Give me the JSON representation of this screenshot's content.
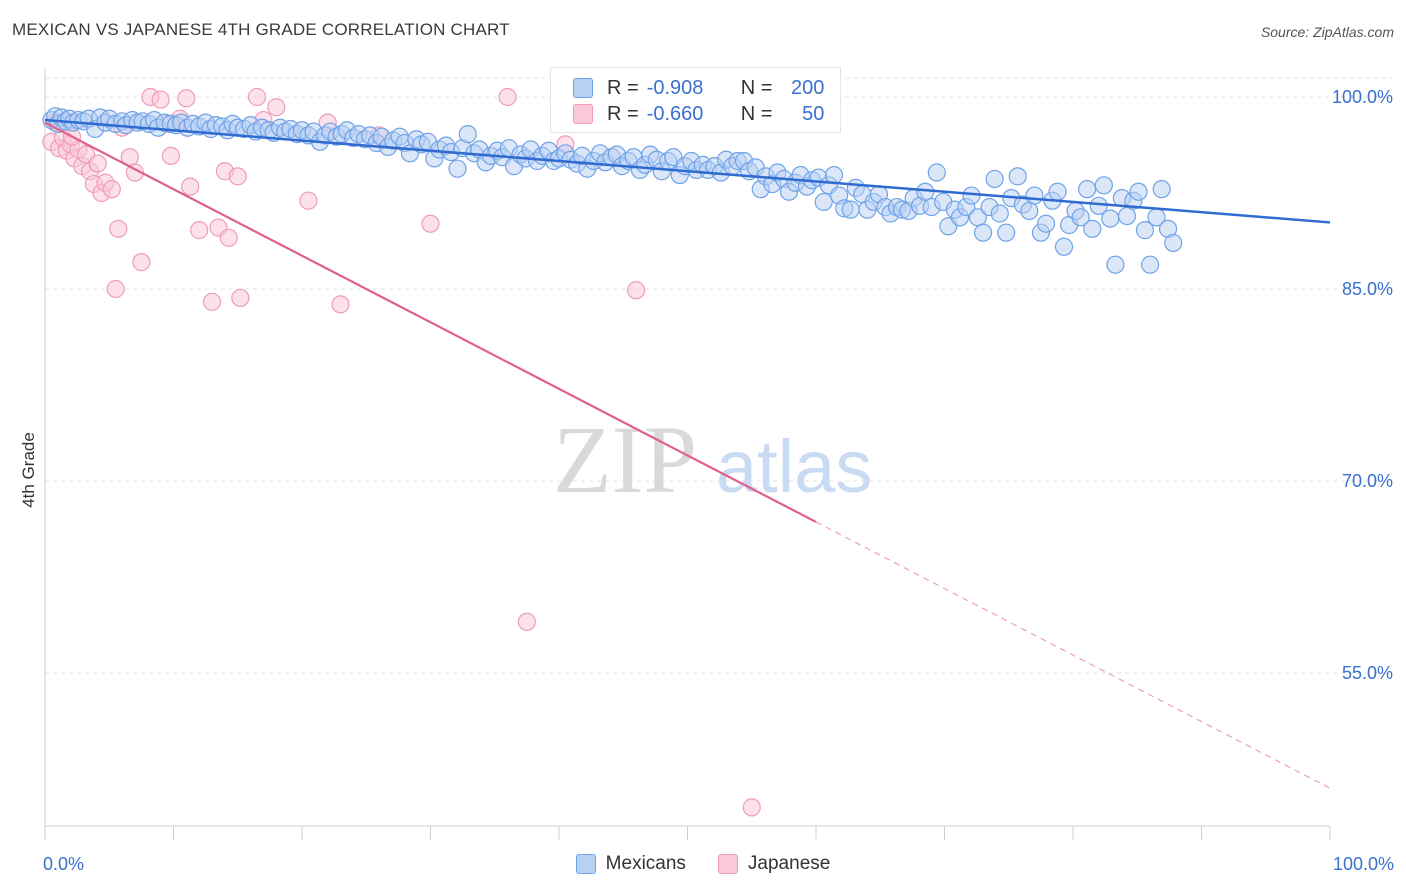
{
  "title": "MEXICAN VS JAPANESE 4TH GRADE CORRELATION CHART",
  "source": "Source: ZipAtlas.com",
  "watermark": {
    "zip": "ZIP",
    "atlas": "atlas"
  },
  "legend": {
    "items": [
      {
        "name": "Mexicans",
        "r_label": "R =",
        "r_value": "-0.908",
        "n_label": "N =",
        "n_value": "200",
        "color": "#6fa3e8",
        "fill": "#b7d0f3"
      },
      {
        "name": "Japanese",
        "r_label": "R =",
        "r_value": "-0.660",
        "n_label": "N =",
        "n_value": "50",
        "color": "#f09bb8",
        "fill": "#f9c9d8"
      }
    ]
  },
  "chart_data": {
    "type": "scatter",
    "title": "MEXICAN VS JAPANESE 4TH GRADE CORRELATION CHART",
    "xlabel": "",
    "ylabel": "4th Grade",
    "xlim": [
      0,
      100
    ],
    "ylim": [
      40,
      101
    ],
    "x_tick_labels": [
      "0.0%",
      "100.0%"
    ],
    "y_ticks": [
      55,
      70,
      85,
      100
    ],
    "y_tick_labels": [
      "55.0%",
      "70.0%",
      "85.0%",
      "100.0%"
    ],
    "grid": true,
    "legend_position": "top-center",
    "series": [
      {
        "name": "Mexicans",
        "color": "#3a70d0",
        "trend": {
          "x0": 0,
          "y0": 98.2,
          "x1": 100,
          "y1": 90.2
        },
        "points": [
          [
            0.5,
            98.2
          ],
          [
            0.8,
            98.5
          ],
          [
            1.0,
            97.9
          ],
          [
            1.3,
            98.4
          ],
          [
            1.6,
            98.1
          ],
          [
            1.9,
            98.3
          ],
          [
            2.2,
            98.0
          ],
          [
            2.6,
            98.2
          ],
          [
            3.0,
            98.1
          ],
          [
            3.4,
            98.3
          ],
          [
            3.9,
            97.5
          ],
          [
            4.3,
            98.4
          ],
          [
            4.7,
            98.0
          ],
          [
            5.0,
            98.3
          ],
          [
            5.5,
            97.9
          ],
          [
            6.0,
            98.1
          ],
          [
            6.3,
            97.8
          ],
          [
            6.8,
            98.2
          ],
          [
            7.2,
            98.0
          ],
          [
            7.6,
            98.1
          ],
          [
            8.1,
            97.9
          ],
          [
            8.5,
            98.2
          ],
          [
            8.8,
            97.6
          ],
          [
            9.3,
            98.0
          ],
          [
            9.8,
            97.9
          ],
          [
            10.2,
            97.8
          ],
          [
            10.6,
            98.0
          ],
          [
            11.1,
            97.6
          ],
          [
            11.5,
            97.9
          ],
          [
            12.0,
            97.7
          ],
          [
            12.5,
            98.0
          ],
          [
            12.9,
            97.5
          ],
          [
            13.3,
            97.8
          ],
          [
            13.8,
            97.7
          ],
          [
            14.2,
            97.4
          ],
          [
            14.6,
            97.9
          ],
          [
            15.0,
            97.6
          ],
          [
            15.5,
            97.5
          ],
          [
            16.0,
            97.8
          ],
          [
            16.4,
            97.3
          ],
          [
            16.9,
            97.6
          ],
          [
            17.4,
            97.4
          ],
          [
            17.8,
            97.2
          ],
          [
            18.3,
            97.6
          ],
          [
            18.7,
            97.3
          ],
          [
            19.1,
            97.5
          ],
          [
            19.6,
            97.1
          ],
          [
            20.0,
            97.4
          ],
          [
            20.5,
            97.0
          ],
          [
            20.9,
            97.3
          ],
          [
            21.4,
            96.5
          ],
          [
            21.8,
            97.0
          ],
          [
            22.2,
            97.3
          ],
          [
            22.7,
            96.9
          ],
          [
            23.1,
            97.1
          ],
          [
            23.5,
            97.4
          ],
          [
            24.0,
            96.8
          ],
          [
            24.4,
            97.1
          ],
          [
            24.9,
            96.7
          ],
          [
            25.3,
            97.0
          ],
          [
            25.8,
            96.4
          ],
          [
            26.2,
            96.9
          ],
          [
            26.7,
            96.1
          ],
          [
            27.1,
            96.6
          ],
          [
            27.6,
            96.9
          ],
          [
            28.0,
            96.4
          ],
          [
            28.4,
            95.6
          ],
          [
            28.9,
            96.7
          ],
          [
            29.3,
            96.3
          ],
          [
            29.8,
            96.5
          ],
          [
            30.3,
            95.2
          ],
          [
            30.7,
            95.9
          ],
          [
            31.2,
            96.2
          ],
          [
            31.6,
            95.7
          ],
          [
            32.1,
            94.4
          ],
          [
            32.5,
            96.0
          ],
          [
            32.9,
            97.1
          ],
          [
            33.4,
            95.6
          ],
          [
            33.8,
            95.9
          ],
          [
            34.3,
            94.9
          ],
          [
            34.7,
            95.4
          ],
          [
            35.2,
            95.8
          ],
          [
            35.6,
            95.3
          ],
          [
            36.1,
            96.0
          ],
          [
            36.5,
            94.6
          ],
          [
            37.0,
            95.5
          ],
          [
            37.4,
            95.2
          ],
          [
            37.8,
            95.9
          ],
          [
            38.3,
            95.0
          ],
          [
            38.7,
            95.4
          ],
          [
            39.2,
            95.8
          ],
          [
            39.6,
            95.0
          ],
          [
            40.0,
            95.2
          ],
          [
            40.5,
            95.6
          ],
          [
            40.9,
            95.1
          ],
          [
            41.4,
            94.8
          ],
          [
            41.8,
            95.4
          ],
          [
            42.2,
            94.4
          ],
          [
            42.7,
            95.0
          ],
          [
            43.2,
            95.6
          ],
          [
            43.6,
            94.9
          ],
          [
            44.1,
            95.3
          ],
          [
            44.5,
            95.5
          ],
          [
            44.9,
            94.6
          ],
          [
            45.4,
            95.0
          ],
          [
            45.8,
            95.3
          ],
          [
            46.3,
            94.3
          ],
          [
            46.7,
            94.7
          ],
          [
            47.1,
            95.5
          ],
          [
            47.6,
            95.1
          ],
          [
            48.0,
            94.2
          ],
          [
            48.5,
            95.0
          ],
          [
            48.9,
            95.3
          ],
          [
            49.4,
            93.9
          ],
          [
            49.8,
            94.6
          ],
          [
            50.3,
            95.0
          ],
          [
            50.7,
            94.3
          ],
          [
            51.2,
            94.7
          ],
          [
            51.6,
            94.3
          ],
          [
            52.1,
            94.6
          ],
          [
            52.6,
            94.1
          ],
          [
            53.0,
            95.1
          ],
          [
            53.5,
            94.6
          ],
          [
            53.9,
            95.0
          ],
          [
            54.4,
            95.0
          ],
          [
            54.8,
            94.2
          ],
          [
            55.3,
            94.5
          ],
          [
            55.7,
            92.8
          ],
          [
            56.1,
            93.8
          ],
          [
            56.6,
            93.2
          ],
          [
            57.0,
            94.1
          ],
          [
            57.5,
            93.6
          ],
          [
            57.9,
            92.6
          ],
          [
            58.4,
            93.3
          ],
          [
            58.8,
            93.9
          ],
          [
            59.3,
            93.0
          ],
          [
            59.7,
            93.5
          ],
          [
            60.2,
            93.7
          ],
          [
            60.6,
            91.8
          ],
          [
            61.0,
            93.1
          ],
          [
            61.4,
            93.9
          ],
          [
            61.8,
            92.3
          ],
          [
            62.2,
            91.3
          ],
          [
            62.7,
            91.2
          ],
          [
            63.1,
            92.9
          ],
          [
            63.6,
            92.4
          ],
          [
            64.0,
            91.2
          ],
          [
            64.5,
            91.8
          ],
          [
            64.9,
            92.4
          ],
          [
            65.4,
            91.4
          ],
          [
            65.8,
            90.9
          ],
          [
            66.3,
            91.4
          ],
          [
            66.7,
            91.2
          ],
          [
            67.2,
            91.1
          ],
          [
            67.6,
            92.1
          ],
          [
            68.1,
            91.5
          ],
          [
            68.5,
            92.6
          ],
          [
            69.0,
            91.4
          ],
          [
            69.4,
            94.1
          ],
          [
            69.9,
            91.8
          ],
          [
            70.3,
            89.9
          ],
          [
            70.8,
            91.2
          ],
          [
            71.2,
            90.6
          ],
          [
            71.7,
            91.4
          ],
          [
            72.1,
            92.3
          ],
          [
            72.6,
            90.6
          ],
          [
            73.0,
            89.4
          ],
          [
            73.5,
            91.4
          ],
          [
            73.9,
            93.6
          ],
          [
            74.3,
            90.9
          ],
          [
            74.8,
            89.4
          ],
          [
            75.2,
            92.1
          ],
          [
            75.7,
            93.8
          ],
          [
            76.1,
            91.6
          ],
          [
            76.6,
            91.1
          ],
          [
            77.0,
            92.3
          ],
          [
            77.5,
            89.4
          ],
          [
            77.9,
            90.1
          ],
          [
            78.4,
            91.9
          ],
          [
            78.8,
            92.6
          ],
          [
            79.3,
            88.3
          ],
          [
            79.7,
            90.0
          ],
          [
            80.2,
            91.1
          ],
          [
            80.6,
            90.6
          ],
          [
            81.1,
            92.8
          ],
          [
            81.5,
            89.7
          ],
          [
            82.0,
            91.5
          ],
          [
            82.4,
            93.1
          ],
          [
            82.9,
            90.5
          ],
          [
            83.3,
            86.9
          ],
          [
            83.8,
            92.1
          ],
          [
            84.2,
            90.7
          ],
          [
            84.7,
            91.9
          ],
          [
            85.1,
            92.6
          ],
          [
            85.6,
            89.6
          ],
          [
            86.0,
            86.9
          ],
          [
            86.5,
            90.6
          ],
          [
            86.9,
            92.8
          ],
          [
            87.4,
            89.7
          ],
          [
            87.8,
            88.6
          ]
        ]
      },
      {
        "name": "Japanese",
        "color": "#e0608a",
        "trend": {
          "x0": 0,
          "y0": 98.0,
          "x1": 100,
          "y1": 46.0,
          "solid_until_x": 60
        },
        "points": [
          [
            0.5,
            96.5
          ],
          [
            0.8,
            98.0
          ],
          [
            1.1,
            96.0
          ],
          [
            1.4,
            96.8
          ],
          [
            1.7,
            95.8
          ],
          [
            2.0,
            96.3
          ],
          [
            2.3,
            95.2
          ],
          [
            2.6,
            95.9
          ],
          [
            2.9,
            94.6
          ],
          [
            3.2,
            95.5
          ],
          [
            3.5,
            94.2
          ],
          [
            3.8,
            93.2
          ],
          [
            4.1,
            94.8
          ],
          [
            4.4,
            92.5
          ],
          [
            4.7,
            93.3
          ],
          [
            5.2,
            92.8
          ],
          [
            5.7,
            89.7
          ],
          [
            6.0,
            97.6
          ],
          [
            6.6,
            95.3
          ],
          [
            7.0,
            94.1
          ],
          [
            7.5,
            87.1
          ],
          [
            8.2,
            100.0
          ],
          [
            9.0,
            99.8
          ],
          [
            9.5,
            97.9
          ],
          [
            9.8,
            95.4
          ],
          [
            10.5,
            98.3
          ],
          [
            11.0,
            99.9
          ],
          [
            11.3,
            93.0
          ],
          [
            12.0,
            89.6
          ],
          [
            13.0,
            84.0
          ],
          [
            13.5,
            89.8
          ],
          [
            14.0,
            94.2
          ],
          [
            14.3,
            89.0
          ],
          [
            15.0,
            93.8
          ],
          [
            15.2,
            84.3
          ],
          [
            16.5,
            100.0
          ],
          [
            17.0,
            98.2
          ],
          [
            18.0,
            99.2
          ],
          [
            20.5,
            91.9
          ],
          [
            22.0,
            98.0
          ],
          [
            23.0,
            83.8
          ],
          [
            26.0,
            97.0
          ],
          [
            30.0,
            90.1
          ],
          [
            36.0,
            100.0
          ],
          [
            37.5,
            59.0
          ],
          [
            40.5,
            96.3
          ],
          [
            46.0,
            84.9
          ],
          [
            55.0,
            44.5
          ],
          [
            5.5,
            85.0
          ],
          [
            2.1,
            96.9
          ]
        ]
      }
    ]
  }
}
